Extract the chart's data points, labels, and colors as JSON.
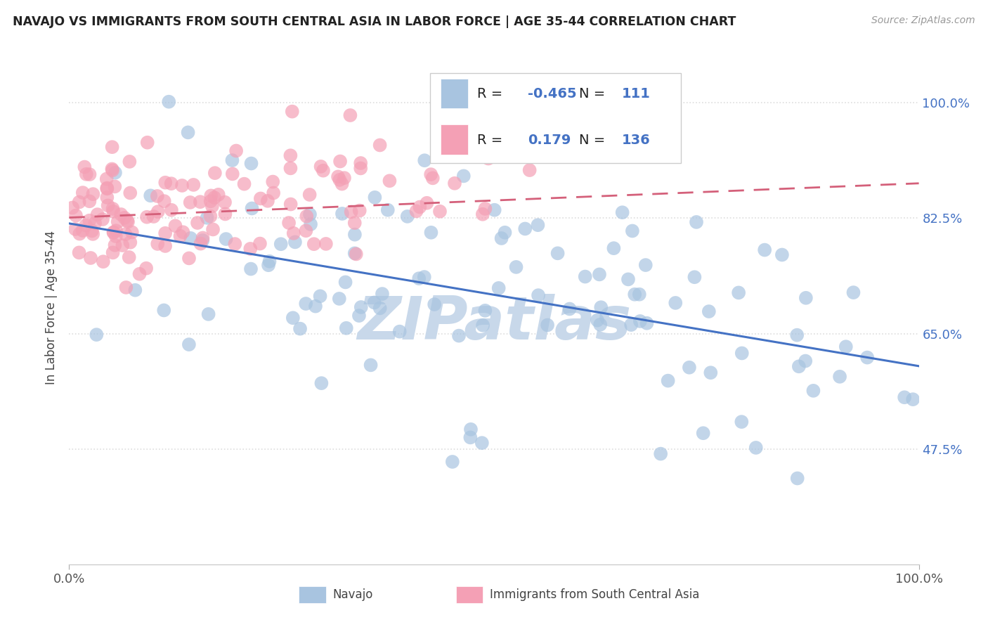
{
  "title": "NAVAJO VS IMMIGRANTS FROM SOUTH CENTRAL ASIA IN LABOR FORCE | AGE 35-44 CORRELATION CHART",
  "source_text": "Source: ZipAtlas.com",
  "ylabel": "In Labor Force | Age 35-44",
  "xmin": 0.0,
  "xmax": 1.0,
  "ymin": 0.3,
  "ymax": 1.08,
  "yticks": [
    0.475,
    0.65,
    0.825,
    1.0
  ],
  "ytick_labels": [
    "47.5%",
    "65.0%",
    "82.5%",
    "100.0%"
  ],
  "legend_R_navajo": "-0.465",
  "legend_N_navajo": "111",
  "legend_R_immigrants": "0.179",
  "legend_N_immigrants": "136",
  "navajo_color": "#a8c4e0",
  "immigrants_color": "#f4a0b5",
  "navajo_line_color": "#4472c4",
  "immigrants_line_color": "#d4607a",
  "background_color": "#ffffff",
  "watermark_color": "#c8d8ea",
  "nav_seed": 42,
  "imm_seed": 99,
  "legend_blue_color": "#4472c4",
  "grid_color": "#dddddd",
  "bottom_legend_items": [
    {
      "label": "Navajo",
      "color": "#a8c4e0"
    },
    {
      "label": "Immigrants from South Central Asia",
      "color": "#f4a0b5"
    }
  ]
}
